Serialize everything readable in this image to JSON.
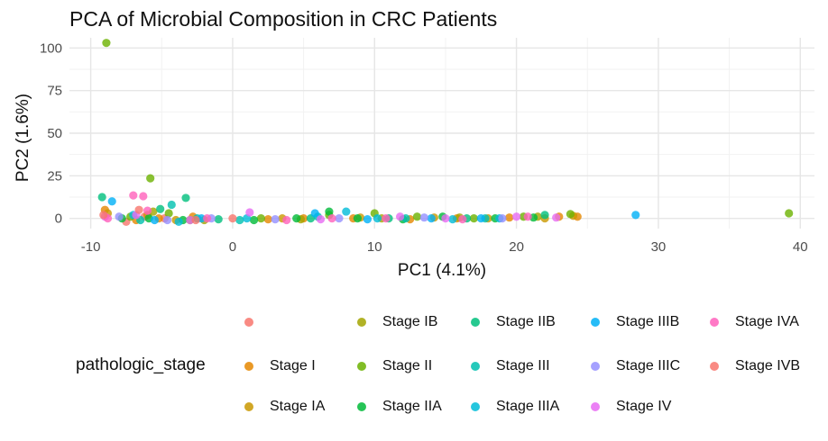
{
  "chart_data": {
    "type": "scatter",
    "title": "PCA of Microbial Composition in CRC Patients",
    "xlabel": "PC1 (4.1%)",
    "ylabel": "PC2 (1.6%)",
    "xlim": [
      -11.5,
      41
    ],
    "ylim": [
      -6,
      106
    ],
    "x_ticks": [
      -10,
      0,
      10,
      20,
      30,
      40
    ],
    "y_ticks": [
      0,
      25,
      50,
      75,
      100
    ],
    "grid": true,
    "legend": {
      "title": "pathologic_stage",
      "placement": "bottom",
      "entries": [
        {
          "label": "",
          "color": "#F8766D"
        },
        {
          "label": "Stage I",
          "color": "#E58700"
        },
        {
          "label": "Stage IA",
          "color": "#C99800"
        },
        {
          "label": "Stage IB",
          "color": "#A3A500"
        },
        {
          "label": "Stage II",
          "color": "#6BB100"
        },
        {
          "label": "Stage IIA",
          "color": "#00BA38"
        },
        {
          "label": "Stage IIB",
          "color": "#00BF7D"
        },
        {
          "label": "Stage III",
          "color": "#00C0AF"
        },
        {
          "label": "Stage IIIA",
          "color": "#00BCD8"
        },
        {
          "label": "Stage IIIB",
          "color": "#00B0F6"
        },
        {
          "label": "Stage IIIC",
          "color": "#9590FF"
        },
        {
          "label": "Stage IV",
          "color": "#E76BF3"
        },
        {
          "label": "Stage IVA",
          "color": "#FF62BC"
        },
        {
          "label": "Stage IVB",
          "color": "#F8766D"
        }
      ]
    },
    "series": [
      {
        "stage": 0,
        "points": [
          [
            -7.5,
            -2
          ],
          [
            -6.2,
            1
          ],
          [
            -4.8,
            0
          ]
        ]
      },
      {
        "stage": 1,
        "points": [
          [
            -9.0,
            5
          ],
          [
            -6.8,
            -1
          ],
          [
            -5.2,
            0
          ],
          [
            -2.8,
            1
          ],
          [
            2.5,
            -0.5
          ],
          [
            5.0,
            0
          ],
          [
            8.5,
            0
          ],
          [
            12.5,
            -0.5
          ],
          [
            15.8,
            0
          ],
          [
            19.5,
            0.5
          ],
          [
            23.0,
            1
          ],
          [
            24.3,
            1
          ]
        ]
      },
      {
        "stage": 2,
        "points": [
          [
            -8.8,
            3
          ],
          [
            -6.0,
            2
          ],
          [
            -4.0,
            -1
          ],
          [
            3.5,
            0
          ],
          [
            9.0,
            0.5
          ],
          [
            14.2,
            0.5
          ],
          [
            18.0,
            0
          ],
          [
            22.0,
            0
          ],
          [
            24.0,
            1.5
          ]
        ]
      },
      {
        "stage": 3,
        "points": [
          [
            -5.6,
            4
          ],
          [
            -2.0,
            -1
          ],
          [
            4.8,
            -0.5
          ],
          [
            10.5,
            0
          ],
          [
            16.0,
            0.5
          ],
          [
            21.5,
            1
          ]
        ]
      },
      {
        "stage": 4,
        "points": [
          [
            -8.9,
            103
          ],
          [
            -5.8,
            23.5
          ],
          [
            -7.2,
            1
          ],
          [
            -4.5,
            3
          ],
          [
            -3.0,
            -1
          ],
          [
            2.0,
            0
          ],
          [
            6.8,
            2
          ],
          [
            10.0,
            3
          ],
          [
            13.0,
            1
          ],
          [
            17.0,
            0
          ],
          [
            20.5,
            1
          ],
          [
            23.8,
            2.5
          ],
          [
            39.2,
            3
          ]
        ]
      },
      {
        "stage": 5,
        "points": [
          [
            -7.8,
            0
          ],
          [
            -5.9,
            0
          ],
          [
            -3.5,
            -1
          ],
          [
            1.5,
            -1
          ],
          [
            4.5,
            0
          ],
          [
            6.8,
            4
          ],
          [
            8.8,
            0
          ],
          [
            12.0,
            -0.5
          ],
          [
            14.8,
            1
          ],
          [
            18.5,
            0
          ],
          [
            21.2,
            0.5
          ]
        ]
      },
      {
        "stage": 6,
        "points": [
          [
            -9.2,
            12.5
          ],
          [
            -3.3,
            12
          ],
          [
            -5.1,
            5.5
          ],
          [
            -1.0,
            -0.5
          ],
          [
            5.5,
            0
          ],
          [
            11.0,
            0
          ],
          [
            16.5,
            0
          ],
          [
            22.0,
            2
          ]
        ]
      },
      {
        "stage": 7,
        "points": [
          [
            -4.3,
            8
          ],
          [
            -6.5,
            -1
          ],
          [
            -2.5,
            0
          ],
          [
            0.5,
            -1
          ],
          [
            6.0,
            1
          ],
          [
            12.2,
            0
          ],
          [
            17.8,
            0
          ]
        ]
      },
      {
        "stage": 8,
        "points": [
          [
            -7.0,
            2
          ],
          [
            -3.8,
            -2
          ],
          [
            1.0,
            0
          ],
          [
            8.0,
            4
          ],
          [
            10.2,
            0
          ],
          [
            15.5,
            -0.5
          ],
          [
            18.8,
            0
          ]
        ]
      },
      {
        "stage": 9,
        "points": [
          [
            -8.5,
            10
          ],
          [
            -5.5,
            -1
          ],
          [
            -2.2,
            0
          ],
          [
            5.8,
            3
          ],
          [
            9.5,
            -0.5
          ],
          [
            14.0,
            0
          ],
          [
            17.5,
            0
          ],
          [
            28.4,
            2
          ]
        ]
      },
      {
        "stage": 10,
        "points": [
          [
            -8.0,
            1
          ],
          [
            -4.6,
            -1
          ],
          [
            -1.5,
            0
          ],
          [
            3.0,
            -0.5
          ],
          [
            7.5,
            0
          ],
          [
            13.5,
            0.5
          ],
          [
            19.0,
            0
          ]
        ]
      },
      {
        "stage": 11,
        "points": [
          [
            -9.0,
            1
          ],
          [
            -6.8,
            2
          ],
          [
            -3.0,
            -1
          ],
          [
            1.2,
            3.5
          ],
          [
            6.2,
            -0.5
          ],
          [
            11.8,
            1
          ],
          [
            15.0,
            0
          ],
          [
            20.0,
            1
          ],
          [
            22.8,
            0.5
          ]
        ]
      },
      {
        "stage": 12,
        "points": [
          [
            -8.8,
            0
          ],
          [
            -7.0,
            13.5
          ],
          [
            -6.3,
            13
          ],
          [
            -6.0,
            4.5
          ],
          [
            -1.8,
            0
          ],
          [
            3.8,
            -1
          ],
          [
            7.0,
            0
          ],
          [
            10.8,
            0
          ],
          [
            16.2,
            -0.5
          ],
          [
            20.8,
            1
          ]
        ]
      },
      {
        "stage": 13,
        "points": [
          [
            -9.1,
            2
          ],
          [
            -6.6,
            5
          ],
          [
            -2.6,
            -1
          ],
          [
            0.0,
            0
          ]
        ]
      }
    ]
  }
}
